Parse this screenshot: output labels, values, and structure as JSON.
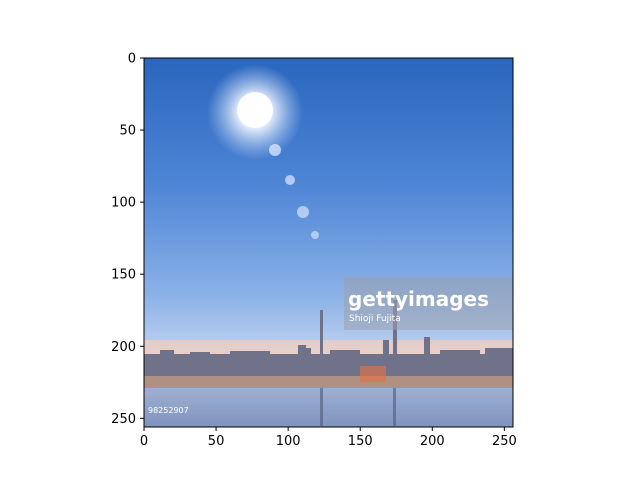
{
  "axes": {
    "x_ticks": [
      0,
      50,
      100,
      150,
      200,
      250
    ],
    "y_ticks": [
      0,
      50,
      100,
      150,
      200,
      250
    ],
    "xlim": [
      0,
      256
    ],
    "ylim": [
      256,
      0
    ]
  },
  "image": {
    "watermark_brand": "gettyimages",
    "watermark_credit": "Shioji Fujita",
    "corner_id": "98252907",
    "colors": {
      "sky_top": "#1f5fb8",
      "sky_mid": "#6c9ce0",
      "horizon": "#f4c9b9",
      "water": "#8ea0c4",
      "skyline": "#6f7289"
    }
  }
}
